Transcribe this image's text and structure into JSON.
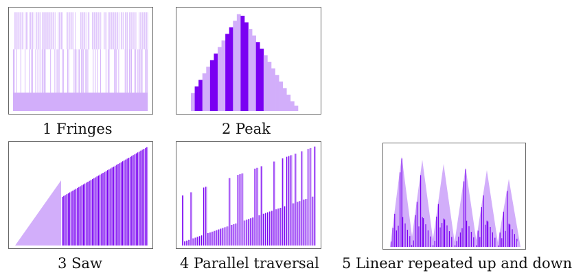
{
  "colors": {
    "light": "#d2aefa",
    "dark": "#7a00f2",
    "frame": "#666666"
  },
  "panels": [
    {
      "id": "fringes",
      "caption": "1 Fringes"
    },
    {
      "id": "peak",
      "caption": "2 Peak"
    },
    {
      "id": "saw",
      "caption": "3 Saw"
    },
    {
      "id": "parallel",
      "caption": "4 Parallel traversal"
    },
    {
      "id": "linear",
      "caption": "5 Linear repeated up and down"
    }
  ]
}
